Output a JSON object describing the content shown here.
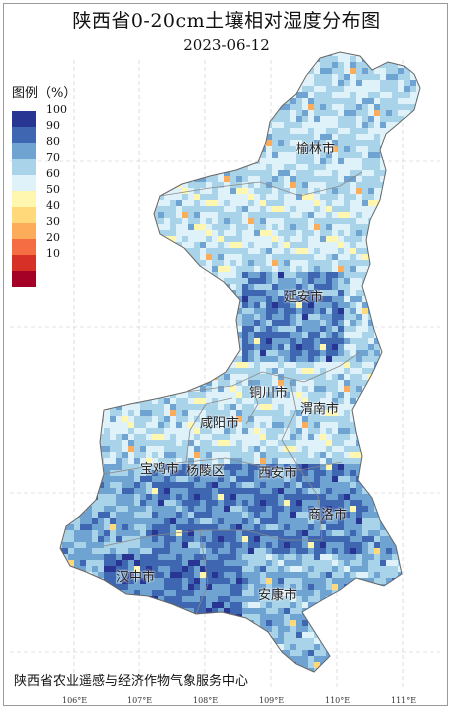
{
  "title": "陕西省0-20cm土壤相对湿度分布图",
  "date": "2023-06-12",
  "legend": {
    "title": "图例（%）",
    "items": [
      {
        "label": "100",
        "color": "#283593"
      },
      {
        "label": "90",
        "color": "#3f66b0"
      },
      {
        "label": "80",
        "color": "#6fa3d2"
      },
      {
        "label": "70",
        "color": "#a8d3e8"
      },
      {
        "label": "60",
        "color": "#dff2fa"
      },
      {
        "label": "50",
        "color": "#fff7b0"
      },
      {
        "label": "40",
        "color": "#ffd97a"
      },
      {
        "label": "30",
        "color": "#fdac5a"
      },
      {
        "label": "20",
        "color": "#f46d43"
      },
      {
        "label": "10",
        "color": "#d73027"
      },
      {
        "label": "",
        "color": "#a50026"
      }
    ]
  },
  "cities": [
    {
      "key": "yulin",
      "name": "榆林市"
    },
    {
      "key": "yanan",
      "name": "延安市"
    },
    {
      "key": "tongchuan",
      "name": "铜川市"
    },
    {
      "key": "weinan",
      "name": "渭南市"
    },
    {
      "key": "xianyang",
      "name": "咸阳市"
    },
    {
      "key": "baoji",
      "name": "宝鸡市"
    },
    {
      "key": "yangling",
      "name": "杨陵区"
    },
    {
      "key": "xian",
      "name": "西安市"
    },
    {
      "key": "shangluo",
      "name": "商洛市"
    },
    {
      "key": "hanzhong",
      "name": "汉中市"
    },
    {
      "key": "ankang",
      "name": "安康市"
    }
  ],
  "x_ticks": [
    "106°E",
    "107°E",
    "108°E",
    "109°E",
    "110°E",
    "111°E"
  ],
  "credit": "陕西省农业遥感与经济作物气象服务中心"
}
